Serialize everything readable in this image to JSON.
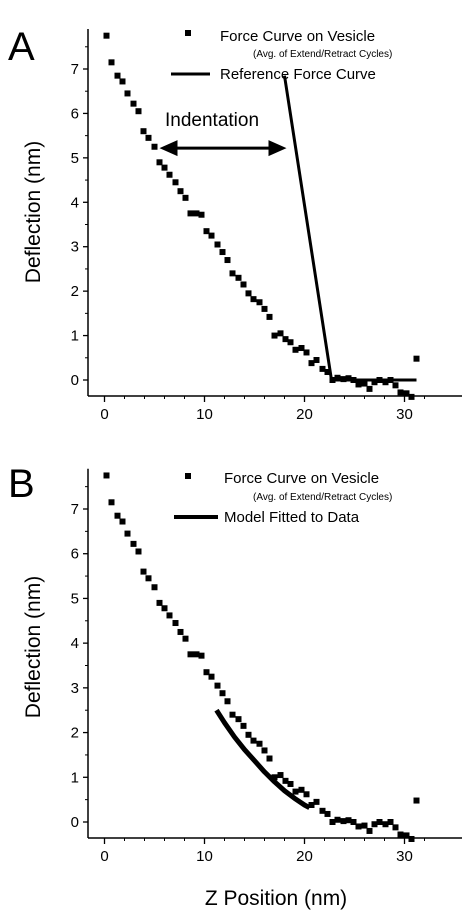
{
  "chart_data": [
    {
      "panel": "A",
      "type": "scatter",
      "title": "",
      "xlabel": "",
      "ylabel": "Deflection (nm)",
      "xlim": [
        -1,
        32
      ],
      "ylim": [
        -0.45,
        7.9
      ],
      "xticks": [
        0,
        10,
        20,
        30
      ],
      "yticks": [
        0,
        1,
        2,
        3,
        4,
        5,
        6,
        7
      ],
      "legend": {
        "position": "top-right",
        "entries": [
          {
            "label": "Force Curve on Vesicle",
            "sublabel": "(Avg. of Extend/Retract Cycles)",
            "marker": "square"
          },
          {
            "label": "Reference Force Curve",
            "marker": "line"
          }
        ]
      },
      "annotation": {
        "text": "Indentation",
        "arrow_from": [
          5.5,
          5.22
        ],
        "arrow_to": [
          18.2,
          5.22
        ]
      },
      "series": [
        {
          "name": "Force Curve on Vesicle",
          "marker": "square",
          "x": [
            0.2,
            0.7,
            1.3,
            1.8,
            2.3,
            2.9,
            3.4,
            3.9,
            4.4,
            5.0,
            5.5,
            6.0,
            6.5,
            7.1,
            7.6,
            8.1,
            8.6,
            9.2,
            9.7,
            10.2,
            10.7,
            11.3,
            11.8,
            12.3,
            12.8,
            13.4,
            13.9,
            14.4,
            14.9,
            15.5,
            16.0,
            16.5,
            17.0,
            17.6,
            18.1,
            18.6,
            19.1,
            19.7,
            20.2,
            20.7,
            21.2,
            21.8,
            22.3,
            22.8,
            23.3,
            23.9,
            24.4,
            24.9,
            25.4,
            26.0,
            26.5,
            27.0,
            27.5,
            28.1,
            28.6,
            29.1,
            29.6,
            30.2,
            30.7,
            31.2
          ],
          "y": [
            7.75,
            7.15,
            6.85,
            6.72,
            6.45,
            6.22,
            6.05,
            5.6,
            5.45,
            5.25,
            4.9,
            4.78,
            4.62,
            4.45,
            4.25,
            4.1,
            3.75,
            3.75,
            3.72,
            3.35,
            3.25,
            3.05,
            2.88,
            2.7,
            2.4,
            2.3,
            2.15,
            1.95,
            1.82,
            1.75,
            1.6,
            1.42,
            1.0,
            1.05,
            0.92,
            0.85,
            0.68,
            0.72,
            0.62,
            0.38,
            0.45,
            0.25,
            0.18,
            0.0,
            0.05,
            0.02,
            0.04,
            0.0,
            -0.1,
            -0.08,
            -0.2,
            -0.05,
            0.0,
            -0.05,
            0.0,
            -0.12,
            -0.28,
            -0.3,
            -0.38,
            0.48
          ]
        },
        {
          "name": "Reference Force Curve",
          "type": "line",
          "x": [
            18.0,
            22.7,
            31.2
          ],
          "y": [
            6.85,
            0.0,
            0.0
          ]
        }
      ]
    },
    {
      "panel": "B",
      "type": "scatter",
      "title": "",
      "xlabel": "Z Position (nm)",
      "ylabel": "Deflection (nm)",
      "xlim": [
        -1,
        32
      ],
      "ylim": [
        -0.45,
        7.9
      ],
      "xticks": [
        0,
        10,
        20,
        30
      ],
      "yticks": [
        0,
        1,
        2,
        3,
        4,
        5,
        6,
        7
      ],
      "legend": {
        "position": "top-right",
        "entries": [
          {
            "label": "Force Curve on Vesicle",
            "sublabel": "(Avg. of Extend/Retract Cycles)",
            "marker": "square"
          },
          {
            "label": "Model Fitted to Data",
            "marker": "line"
          }
        ]
      },
      "series": [
        {
          "name": "Force Curve on Vesicle",
          "marker": "square",
          "x": [
            0.2,
            0.7,
            1.3,
            1.8,
            2.3,
            2.9,
            3.4,
            3.9,
            4.4,
            5.0,
            5.5,
            6.0,
            6.5,
            7.1,
            7.6,
            8.1,
            8.6,
            9.2,
            9.7,
            10.2,
            10.7,
            11.3,
            11.8,
            12.3,
            12.8,
            13.4,
            13.9,
            14.4,
            14.9,
            15.5,
            16.0,
            16.5,
            17.0,
            17.6,
            18.1,
            18.6,
            19.1,
            19.7,
            20.2,
            20.7,
            21.2,
            21.8,
            22.3,
            22.8,
            23.3,
            23.9,
            24.4,
            24.9,
            25.4,
            26.0,
            26.5,
            27.0,
            27.5,
            28.1,
            28.6,
            29.1,
            29.6,
            30.2,
            30.7,
            31.2
          ],
          "y": [
            7.75,
            7.15,
            6.85,
            6.72,
            6.45,
            6.22,
            6.05,
            5.6,
            5.45,
            5.25,
            4.9,
            4.78,
            4.62,
            4.45,
            4.25,
            4.1,
            3.75,
            3.75,
            3.72,
            3.35,
            3.25,
            3.05,
            2.88,
            2.7,
            2.4,
            2.3,
            2.15,
            1.95,
            1.82,
            1.75,
            1.6,
            1.42,
            1.0,
            1.05,
            0.92,
            0.85,
            0.68,
            0.72,
            0.62,
            0.38,
            0.45,
            0.25,
            0.18,
            0.0,
            0.05,
            0.02,
            0.04,
            0.0,
            -0.1,
            -0.08,
            -0.2,
            -0.05,
            0.0,
            -0.05,
            0.0,
            -0.12,
            -0.28,
            -0.3,
            -0.38,
            0.48
          ]
        },
        {
          "name": "Model Fitted to Data",
          "type": "line",
          "x": [
            11.2,
            12.0,
            13.0,
            14.0,
            15.0,
            16.0,
            17.0,
            18.0,
            19.0,
            20.0,
            20.5
          ],
          "y": [
            2.5,
            2.22,
            1.9,
            1.62,
            1.37,
            1.12,
            0.9,
            0.7,
            0.53,
            0.38,
            0.32
          ]
        }
      ]
    }
  ]
}
